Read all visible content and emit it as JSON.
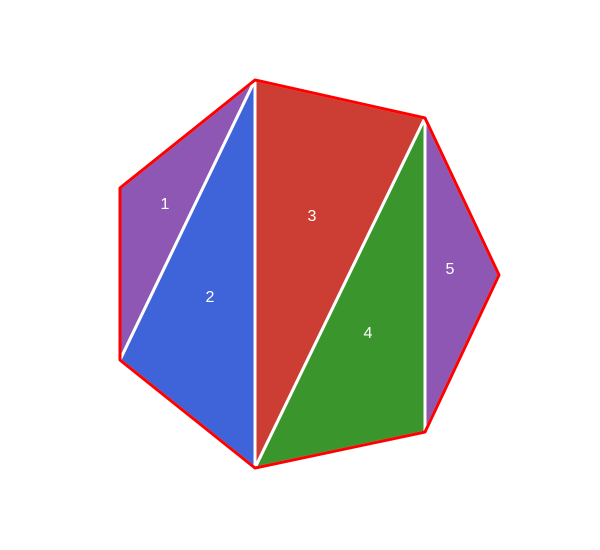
{
  "diagram": {
    "regions": [
      {
        "id": "1",
        "label": "1",
        "color": "#8e57b4"
      },
      {
        "id": "2",
        "label": "2",
        "color": "#3f63d8"
      },
      {
        "id": "3",
        "label": "3",
        "color": "#cc3d33"
      },
      {
        "id": "4",
        "label": "4",
        "color": "#3a962c"
      },
      {
        "id": "5",
        "label": "5",
        "color": "#8e57b4"
      }
    ],
    "outline_color": "#ff0000",
    "divider_color": "#ffffff"
  }
}
